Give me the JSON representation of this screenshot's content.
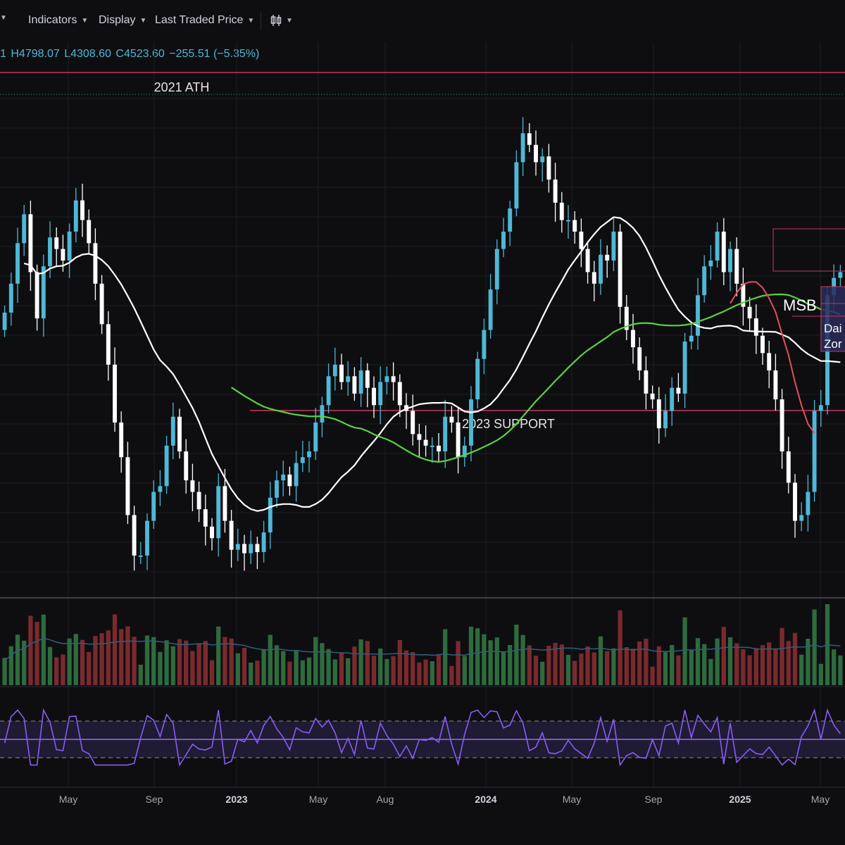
{
  "toolbar": {
    "items": [
      {
        "label": "",
        "icon": "chevron-down-icon"
      },
      {
        "label": "Indicators"
      },
      {
        "label": "Display"
      },
      {
        "label": "Last Traded Price"
      }
    ],
    "chart_type_icon": "candles-icon"
  },
  "ohlc": {
    "o_fragment": "1",
    "h": "H4798.07",
    "l": "L4308.60",
    "c": "C4523.60",
    "change": "−255.51 (−5.35%)"
  },
  "annotations": {
    "ath": "2021 ATH",
    "support": "2023 SUPPORT",
    "msb": "MSB",
    "zone_line1": "Dai",
    "zone_line2": "Zor"
  },
  "colors": {
    "background": "#0e0e11",
    "up": "#4fb8d6",
    "down": "#ffffff",
    "vol_up": "#2e6b3e",
    "vol_down": "#7a2a2e",
    "ma_white": "#ffffff",
    "ma_green": "#5bd13f",
    "ma_red": "#e0505a",
    "level_line": "#c2385a",
    "rsi_line": "#8a5cf5",
    "rsi_band": "#1e1b33"
  },
  "chart_data": {
    "type": "candlestick",
    "x_ticks": [
      "May",
      "Sep",
      "2023",
      "May",
      "Aug",
      "2024",
      "May",
      "Sep",
      "2025",
      "May"
    ],
    "price_series_close": [
      3350,
      3600,
      3950,
      4200,
      3700,
      3300,
      3750,
      4000,
      3900,
      3800,
      4050,
      4320,
      4150,
      3950,
      3600,
      3250,
      2900,
      2400,
      2100,
      1600,
      1250,
      1250,
      1550,
      1800,
      1850,
      2200,
      2450,
      2150,
      1900,
      1800,
      1650,
      1500,
      1400,
      1850,
      1550,
      1300,
      1350,
      1270,
      1350,
      1280,
      1450,
      1750,
      1900,
      1950,
      1850,
      2050,
      2100,
      2150,
      2400,
      2550,
      2800,
      2900,
      2750,
      2800,
      2650,
      2850,
      2700,
      2550,
      2750,
      2800,
      2750,
      2550,
      2500,
      2300,
      2250,
      2200,
      2200,
      2150,
      2450,
      2400,
      2100,
      2200,
      2600,
      2950,
      3200,
      3550,
      3900,
      4050,
      4250,
      4650,
      4900,
      4800,
      4650,
      4700,
      4500,
      4300,
      4150,
      4150,
      4050,
      3900,
      3700,
      3600,
      3850,
      3800,
      4050,
      3400,
      3200,
      3050,
      2850,
      2650,
      2600,
      2350,
      2500,
      2700,
      2650,
      3100,
      3150,
      3500,
      3750,
      3800,
      4050,
      3700,
      3900,
      3600,
      3400,
      3300,
      3150,
      3000,
      2850,
      2600,
      2150,
      1880,
      1550,
      1600,
      1800,
      2500,
      2550,
      3500,
      3650,
      3700
    ],
    "ma_white_label": "",
    "ma_green_label": "",
    "ma_red_label": "",
    "levels": [
      {
        "name": "2021 ATH",
        "price": 4870
      },
      {
        "name": "2023 SUPPORT",
        "price": 1550
      }
    ],
    "volume_note": "",
    "rsi_bands": [
      30,
      70
    ],
    "rsi_mid": 50
  }
}
